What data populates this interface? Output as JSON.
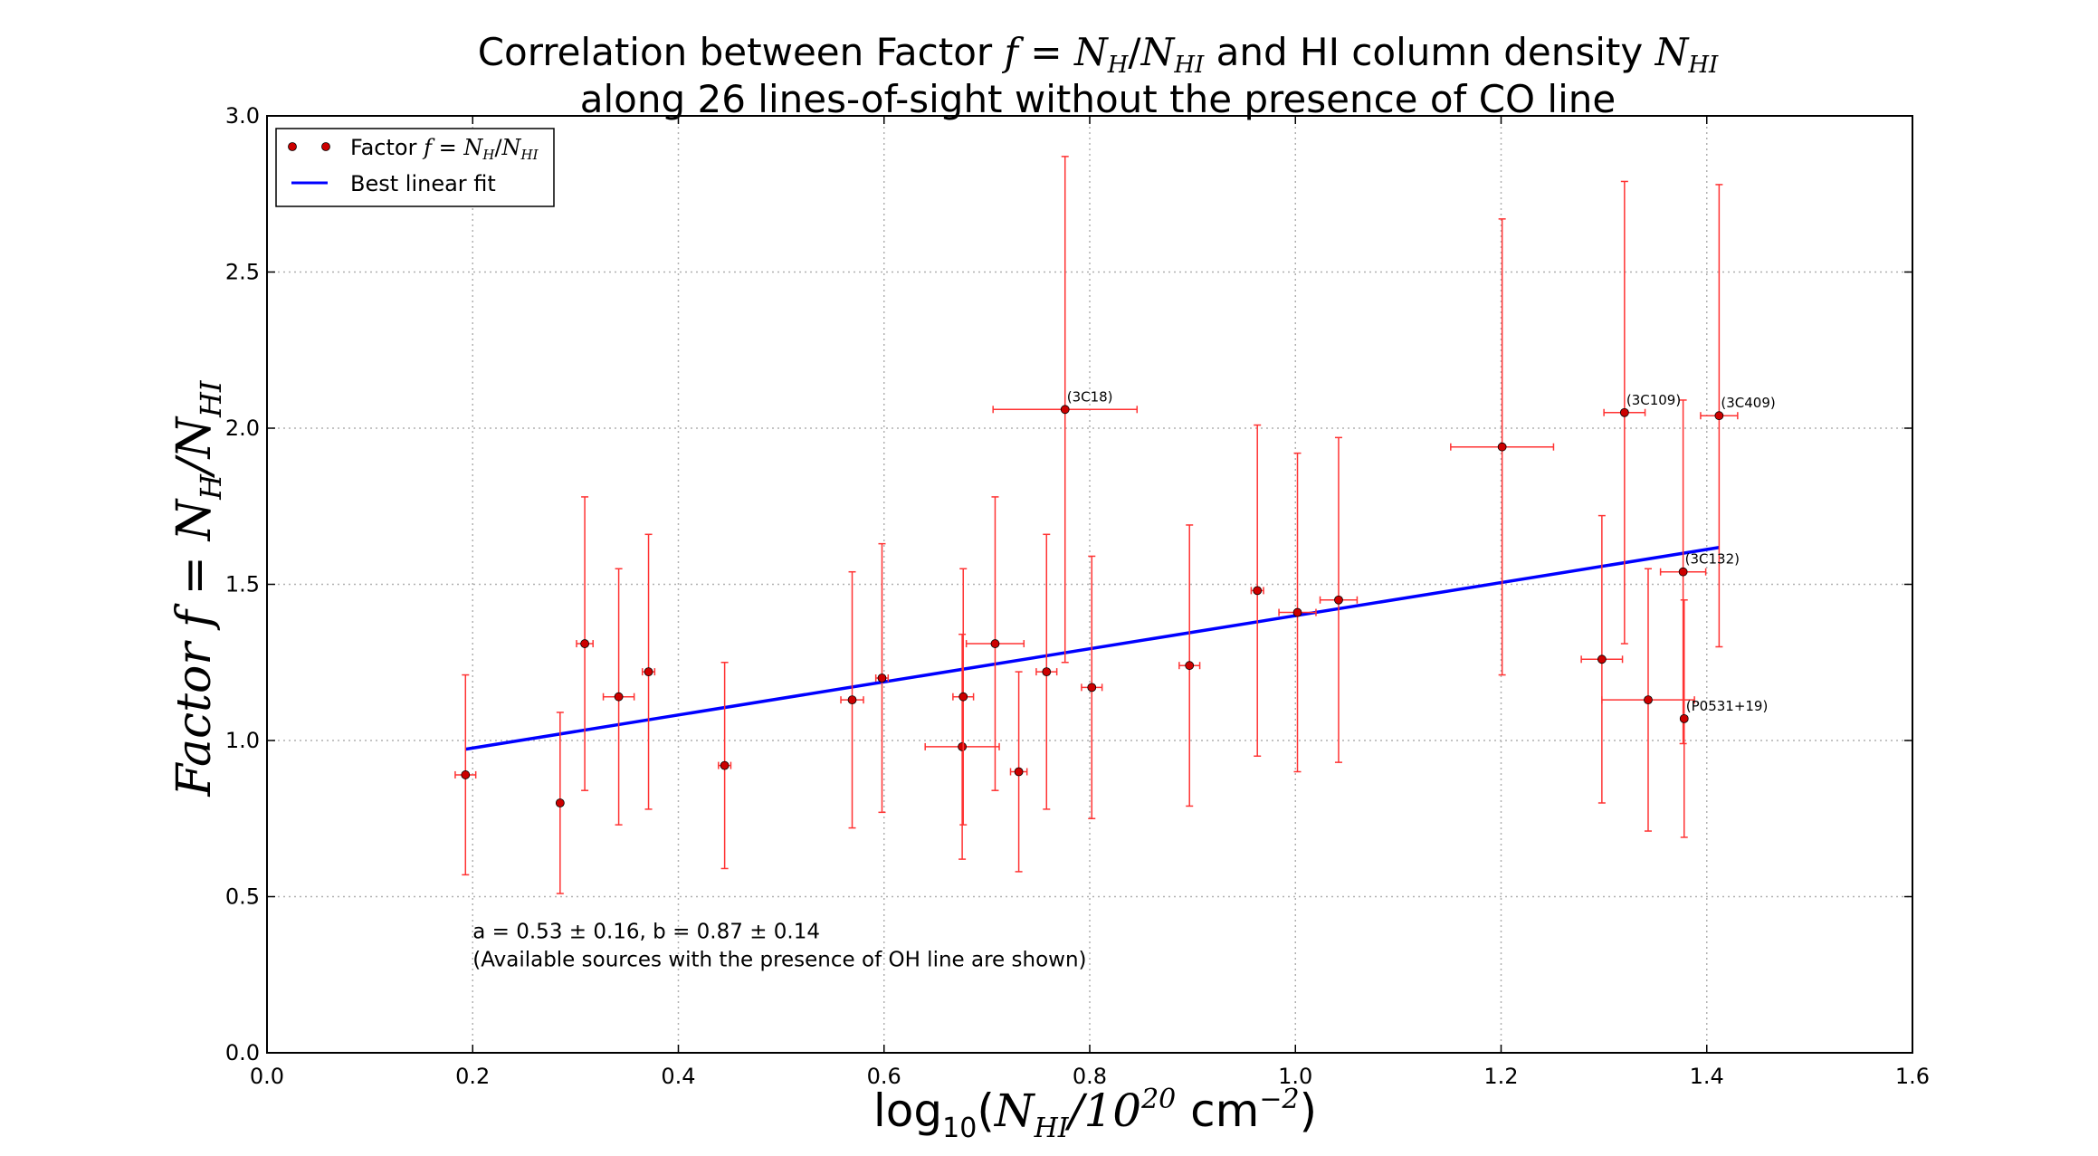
{
  "chart_data": {
    "type": "scatter",
    "title": {
      "line1_prefix": "Correlation between Factor ",
      "line1_f": "f",
      "line1_eq": " = ",
      "line1_N1": "N",
      "line1_N1_sub": "H",
      "line1_slash": "/",
      "line1_N2": "N",
      "line1_N2_sub": "HI",
      "line1_mid": " and HI column density ",
      "line1_N3": "N",
      "line1_N3_sub": "HI",
      "line2": "along 26 lines-of-sight without the presence of CO line"
    },
    "xlabel": {
      "log": "log",
      "log_sub": "10",
      "open": "(",
      "N": "N",
      "N_sub": "HI",
      "slash": "/10",
      "exp": "20",
      "unit": " cm",
      "unit_exp": "−2",
      "close": ")"
    },
    "ylabel": {
      "word": "Factor ",
      "f": "f",
      "eq": " = ",
      "N1": "N",
      "N1_sub": "H",
      "slash": "/",
      "N2": "N",
      "N2_sub": "HI"
    },
    "xlim": [
      0.0,
      1.6
    ],
    "ylim": [
      0.0,
      3.0
    ],
    "xticks": [
      0.0,
      0.2,
      0.4,
      0.6,
      0.8,
      1.0,
      1.2,
      1.4,
      1.6
    ],
    "yticks": [
      0.0,
      0.5,
      1.0,
      1.5,
      2.0,
      2.5,
      3.0
    ],
    "xtick_labels": [
      "0.0",
      "0.2",
      "0.4",
      "0.6",
      "0.8",
      "1.0",
      "1.2",
      "1.4",
      "1.6"
    ],
    "ytick_labels": [
      "0.0",
      "0.5",
      "1.0",
      "1.5",
      "2.0",
      "2.5",
      "3.0"
    ],
    "grid": true,
    "legend_position": "top-left",
    "legend": {
      "factor_prefix": "Factor ",
      "f": "f",
      "eq": " = ",
      "N1": "N",
      "N1_sub": "H",
      "slash": "/",
      "N2": "N",
      "N2_sub": "HI",
      "fit": "Best linear fit"
    },
    "series": [
      {
        "type": "errorbar-scatter",
        "color": "#cc0000",
        "points": [
          {
            "x": 0.193,
            "y": 0.89,
            "xerr": 0.01,
            "yerr": 0.32
          },
          {
            "x": 0.285,
            "y": 0.8,
            "xerr": 0.0,
            "yerr": 0.29
          },
          {
            "x": 0.309,
            "y": 1.31,
            "xerr": 0.008,
            "yerr": 0.47
          },
          {
            "x": 0.342,
            "y": 1.14,
            "xerr": 0.015,
            "yerr": 0.41
          },
          {
            "x": 0.371,
            "y": 1.22,
            "xerr": 0.006,
            "yerr": 0.44
          },
          {
            "x": 0.445,
            "y": 0.92,
            "xerr": 0.006,
            "yerr": 0.33
          },
          {
            "x": 0.569,
            "y": 1.13,
            "xerr": 0.011,
            "yerr": 0.41
          },
          {
            "x": 0.598,
            "y": 1.2,
            "xerr": 0.006,
            "yerr": 0.43
          },
          {
            "x": 0.676,
            "y": 0.98,
            "xerr": 0.036,
            "yerr": 0.36
          },
          {
            "x": 0.677,
            "y": 1.14,
            "xerr": 0.01,
            "yerr": 0.41
          },
          {
            "x": 0.708,
            "y": 1.31,
            "xerr": 0.028,
            "yerr": 0.47
          },
          {
            "x": 0.731,
            "y": 0.9,
            "xerr": 0.008,
            "yerr": 0.32
          },
          {
            "x": 0.758,
            "y": 1.22,
            "xerr": 0.01,
            "yerr": 0.44
          },
          {
            "x": 0.776,
            "y": 2.06,
            "xerr": 0.07,
            "yerr": 0.81,
            "label": "(3C18)"
          },
          {
            "x": 0.802,
            "y": 1.17,
            "xerr": 0.01,
            "yerr": 0.42
          },
          {
            "x": 0.897,
            "y": 1.24,
            "xerr": 0.01,
            "yerr": 0.45
          },
          {
            "x": 0.963,
            "y": 1.48,
            "xerr": 0.006,
            "yerr": 0.53
          },
          {
            "x": 1.002,
            "y": 1.41,
            "xerr": 0.018,
            "yerr": 0.51
          },
          {
            "x": 1.042,
            "y": 1.45,
            "xerr": 0.018,
            "yerr": 0.52
          },
          {
            "x": 1.201,
            "y": 1.94,
            "xerr": 0.05,
            "yerr": 0.73
          },
          {
            "x": 1.298,
            "y": 1.26,
            "xerr": 0.02,
            "yerr": 0.46
          },
          {
            "x": 1.32,
            "y": 2.05,
            "xerr": 0.02,
            "yerr": 0.74,
            "label": "(3C109)"
          },
          {
            "x": 1.343,
            "y": 1.13,
            "xerr": 0.045,
            "yerr": 0.42
          },
          {
            "x": 1.377,
            "y": 1.54,
            "xerr": 0.022,
            "yerr": 0.55,
            "label": "(3C132)"
          },
          {
            "x": 1.378,
            "y": 1.07,
            "xerr": 0.0,
            "yerr": 0.38,
            "label": "(P0531+19)"
          },
          {
            "x": 1.412,
            "y": 2.04,
            "xerr": 0.018,
            "yerr": 0.74,
            "label": "(3C409)"
          }
        ]
      },
      {
        "type": "line",
        "color": "#0000ff",
        "x": [
          0.193,
          1.412
        ],
        "y": [
          0.972,
          1.618
        ]
      }
    ],
    "annotation_fit": "a = 0.53 ± 0.16,  b = 0.87 ± 0.14",
    "annotation_note": "(Available sources with the presence of OH line are shown)",
    "annotation_fit_color": "#0000ff",
    "annotation_note_color": "#ff0000"
  }
}
